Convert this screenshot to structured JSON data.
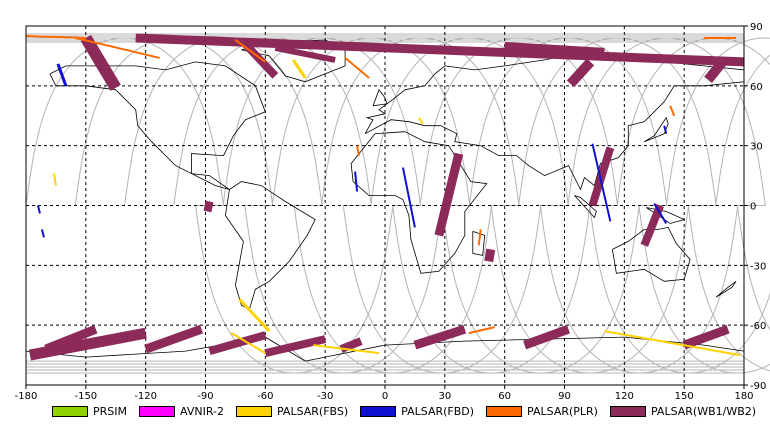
{
  "map": {
    "lon_ticks": [
      "-180",
      "-150",
      "-120",
      "-90",
      "-60",
      "-30",
      "0",
      "30",
      "60",
      "90",
      "120",
      "150",
      "180"
    ],
    "lat_ticks": [
      "90",
      "60",
      "30",
      "0",
      "-30",
      "-60",
      "-90"
    ],
    "extent": {
      "lon": [
        -180,
        180
      ],
      "lat": [
        -90,
        90
      ]
    },
    "grid_step_deg": 30,
    "grid": true,
    "background": "#ffffff",
    "grid_color": "#000000",
    "coast_color": "#000000",
    "orbit_color": "#b4b4b4"
  },
  "legend": [
    {
      "label": "PRSIM",
      "color": "#8fd400"
    },
    {
      "label": "AVNIR-2",
      "color": "#ff00ff"
    },
    {
      "label": "PALSAR(FBS)",
      "color": "#ffd200"
    },
    {
      "label": "PALSAR(FBD)",
      "color": "#1010d0"
    },
    {
      "label": "PALSAR(PLR)",
      "color": "#ff6a00"
    },
    {
      "label": "PALSAR(WB1/WB2)",
      "color": "#8c2a5a"
    }
  ],
  "swaths": [
    {
      "mode": "PALSAR(WB1/WB2)",
      "lat": [
        84,
        59
      ],
      "lon": [
        -150,
        -135
      ],
      "width": 12
    },
    {
      "mode": "PALSAR(WB1/WB2)",
      "lat": [
        84,
        72
      ],
      "lon": [
        -125,
        180
      ],
      "width": 9
    },
    {
      "mode": "PALSAR(WB1/WB2)",
      "lat": [
        83,
        65
      ],
      "lon": [
        -72,
        -55
      ],
      "width": 8
    },
    {
      "mode": "PALSAR(WB1/WB2)",
      "lat": [
        79,
        73
      ],
      "lon": [
        -55,
        -25
      ],
      "width": 6
    },
    {
      "mode": "PALSAR(WB1/WB2)",
      "lat": [
        80,
        77
      ],
      "lon": [
        60,
        110
      ],
      "width": 8
    },
    {
      "mode": "PALSAR(WB1/WB2)",
      "lat": [
        72,
        61
      ],
      "lon": [
        103,
        93
      ],
      "width": 10
    },
    {
      "mode": "PALSAR(WB1/WB2)",
      "lat": [
        73,
        63
      ],
      "lon": [
        170,
        162
      ],
      "width": 10
    },
    {
      "mode": "PALSAR(WB1/WB2)",
      "lat": [
        26,
        -15
      ],
      "lon": [
        37,
        27
      ],
      "width": 9
    },
    {
      "mode": "PALSAR(WB1/WB2)",
      "lat": [
        2,
        -3
      ],
      "lon": [
        -88,
        -89
      ],
      "width": 8
    },
    {
      "mode": "PALSAR(WB1/WB2)",
      "lat": [
        -22,
        -28
      ],
      "lon": [
        53,
        52
      ],
      "width": 9
    },
    {
      "mode": "PALSAR(WB1/WB2)",
      "lat": [
        29,
        0
      ],
      "lon": [
        113,
        104
      ],
      "width": 8
    },
    {
      "mode": "PALSAR(WB1/WB2)",
      "lat": [
        0,
        -20
      ],
      "lon": [
        138,
        130
      ],
      "width": 8
    },
    {
      "mode": "PALSAR(WB1/WB2)",
      "lat": [
        -62,
        -72
      ],
      "lon": [
        -145,
        -170
      ],
      "width": 9
    },
    {
      "mode": "PALSAR(WB1/WB2)",
      "lat": [
        -64,
        -75
      ],
      "lon": [
        -120,
        -178
      ],
      "width": 11
    },
    {
      "mode": "PALSAR(WB1/WB2)",
      "lat": [
        -62,
        -72
      ],
      "lon": [
        -92,
        -120
      ],
      "width": 9
    },
    {
      "mode": "PALSAR(WB1/WB2)",
      "lat": [
        -65,
        -73
      ],
      "lon": [
        -60,
        -88
      ],
      "width": 8
    },
    {
      "mode": "PALSAR(WB1/WB2)",
      "lat": [
        -67,
        -74
      ],
      "lon": [
        -30,
        -60
      ],
      "width": 8
    },
    {
      "mode": "PALSAR(WB1/WB2)",
      "lat": [
        -68,
        -72
      ],
      "lon": [
        -12,
        -22
      ],
      "width": 8
    },
    {
      "mode": "PALSAR(WB1/WB2)",
      "lat": [
        -62,
        -70
      ],
      "lon": [
        40,
        15
      ],
      "width": 9
    },
    {
      "mode": "PALSAR(WB1/WB2)",
      "lat": [
        -62,
        -70
      ],
      "lon": [
        92,
        70
      ],
      "width": 9
    },
    {
      "mode": "PALSAR(WB1/WB2)",
      "lat": [
        -62,
        -70
      ],
      "lon": [
        172,
        150
      ],
      "width": 9
    },
    {
      "mode": "PALSAR(FBD)",
      "lat": [
        71,
        60
      ],
      "lon": [
        -164,
        -160
      ],
      "width": 3
    },
    {
      "mode": "PALSAR(FBD)",
      "lat": [
        17,
        7
      ],
      "lon": [
        -15,
        -14
      ],
      "width": 2
    },
    {
      "mode": "PALSAR(FBD)",
      "lat": [
        19,
        -11
      ],
      "lon": [
        9,
        15
      ],
      "width": 2
    },
    {
      "mode": "PALSAR(FBD)",
      "lat": [
        31,
        -8
      ],
      "lon": [
        104,
        113
      ],
      "width": 2
    },
    {
      "mode": "PALSAR(FBD)",
      "lat": [
        1,
        -9
      ],
      "lon": [
        135,
        141
      ],
      "width": 2
    },
    {
      "mode": "PALSAR(FBD)",
      "lat": [
        0,
        -4
      ],
      "lon": [
        -174,
        -173
      ],
      "width": 2
    },
    {
      "mode": "PALSAR(FBD)",
      "lat": [
        -12,
        -16
      ],
      "lon": [
        -172,
        -171
      ],
      "width": 2
    },
    {
      "mode": "PALSAR(FBD)",
      "lat": [
        40,
        36
      ],
      "lon": [
        140,
        141
      ],
      "width": 2
    },
    {
      "mode": "PALSAR(FBS)",
      "lat": [
        -47,
        -63
      ],
      "lon": [
        -73,
        -58
      ],
      "width": 3
    },
    {
      "mode": "PALSAR(FBS)",
      "lat": [
        -64,
        -74
      ],
      "lon": [
        -77,
        -60
      ],
      "width": 2
    },
    {
      "mode": "PALSAR(FBS)",
      "lat": [
        -70,
        -74
      ],
      "lon": [
        -36,
        -3
      ],
      "width": 2
    },
    {
      "mode": "PALSAR(FBS)",
      "lat": [
        -63,
        -75
      ],
      "lon": [
        110,
        178
      ],
      "width": 2
    },
    {
      "mode": "PALSAR(FBS)",
      "lat": [
        73,
        64
      ],
      "lon": [
        -46,
        -40
      ],
      "width": 3
    },
    {
      "mode": "PALSAR(FBS)",
      "lat": [
        16,
        10
      ],
      "lon": [
        -166,
        -165
      ],
      "width": 2
    },
    {
      "mode": "PALSAR(FBS)",
      "lat": [
        44,
        41
      ],
      "lon": [
        17,
        19
      ],
      "width": 2
    },
    {
      "mode": "PALSAR(PLR)",
      "lat": [
        85,
        84
      ],
      "lon": [
        -180,
        -150
      ],
      "width": 2
    },
    {
      "mode": "PALSAR(PLR)",
      "lat": [
        84,
        74
      ],
      "lon": [
        -155,
        -113
      ],
      "width": 2
    },
    {
      "mode": "PALSAR(PLR)",
      "lat": [
        83,
        72
      ],
      "lon": [
        -75,
        -60
      ],
      "width": 2
    },
    {
      "mode": "PALSAR(PLR)",
      "lat": [
        74,
        64
      ],
      "lon": [
        -20,
        -8
      ],
      "width": 2
    },
    {
      "mode": "PALSAR(PLR)",
      "lat": [
        50,
        45
      ],
      "lon": [
        143,
        145
      ],
      "width": 2
    },
    {
      "mode": "PALSAR(PLR)",
      "lat": [
        -61,
        -64
      ],
      "lon": [
        55,
        42
      ],
      "width": 2
    },
    {
      "mode": "PALSAR(PLR)",
      "lat": [
        -12,
        -20
      ],
      "lon": [
        48,
        47
      ],
      "width": 2
    },
    {
      "mode": "PALSAR(PLR)",
      "lat": [
        30,
        25
      ],
      "lon": [
        -14,
        -13
      ],
      "width": 2
    },
    {
      "mode": "PALSAR(PLR)",
      "lat": [
        84,
        84
      ],
      "lon": [
        160,
        176
      ],
      "width": 2
    }
  ]
}
